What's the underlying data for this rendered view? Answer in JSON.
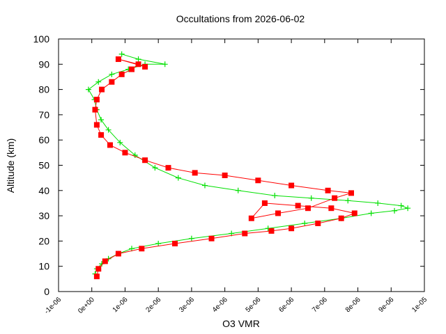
{
  "chart_data": {
    "type": "scatter",
    "title": "Occultations from 2026-06-02",
    "xlabel": "O3 VMR",
    "ylabel": "Altitude (km)",
    "xlim": [
      -1e-06,
      1e-05
    ],
    "ylim": [
      0,
      100
    ],
    "x_ticks": [
      {
        "value": -1e-06,
        "label": "-1e-06"
      },
      {
        "value": 0,
        "label": "0e+00"
      },
      {
        "value": 1e-06,
        "label": "1e-06"
      },
      {
        "value": 2e-06,
        "label": "2e-06"
      },
      {
        "value": 3e-06,
        "label": "3e-06"
      },
      {
        "value": 4e-06,
        "label": "4e-06"
      },
      {
        "value": 5e-06,
        "label": "5e-06"
      },
      {
        "value": 6e-06,
        "label": "6e-06"
      },
      {
        "value": 7e-06,
        "label": "7e-06"
      },
      {
        "value": 8e-06,
        "label": "8e-06"
      },
      {
        "value": 9e-06,
        "label": "9e-06"
      },
      {
        "value": 1e-05,
        "label": "1e-05"
      }
    ],
    "y_ticks": [
      0,
      10,
      20,
      30,
      40,
      50,
      60,
      70,
      80,
      90,
      100
    ],
    "grid": false,
    "legend": "none",
    "series": [
      {
        "marker": "plus",
        "color": "#00e000",
        "x": [
          1e-07,
          1.5e-07,
          3e-07,
          5e-07,
          8e-07,
          1.2e-06,
          2e-06,
          3e-06,
          4.2e-06,
          5.3e-06,
          6.4e-06,
          7.5e-06,
          8.4e-06,
          9.1e-06,
          9.5e-06,
          9.3e-06,
          8.6e-06,
          7.7e-06,
          6.6e-06,
          5.5e-06,
          4.4e-06,
          3.4e-06,
          2.6e-06,
          1.9e-06,
          1.3e-06,
          8.5e-07,
          5e-07,
          2.8e-07,
          1.5e-07,
          8e-08,
          -1e-07,
          2e-07,
          6e-07,
          1.1e-06,
          1.6e-06,
          2.2e-06,
          1.4e-06,
          9e-07
        ],
        "y": [
          7,
          9,
          11,
          13,
          15,
          17,
          19,
          21,
          23,
          25,
          27,
          29,
          31,
          32,
          33,
          34,
          35,
          36,
          37,
          38,
          40,
          42,
          45,
          49,
          54,
          59,
          64,
          68,
          72,
          76,
          80,
          83,
          86,
          88,
          90,
          90,
          92,
          94
        ]
      },
      {
        "marker": "square",
        "color": "#ff0000",
        "x": [
          1.5e-07,
          2e-07,
          4e-07,
          8e-07,
          1.5e-06,
          2.5e-06,
          3.6e-06,
          4.6e-06,
          5.4e-06,
          6e-06,
          6.8e-06,
          7.5e-06,
          7.9e-06,
          7.2e-06,
          6.2e-06,
          5.2e-06,
          4.8e-06,
          5.6e-06,
          6.5e-06,
          7.3e-06,
          7.8e-06,
          7.1e-06,
          6e-06,
          5e-06,
          4e-06,
          3.1e-06,
          2.3e-06,
          1.6e-06,
          1e-06,
          5.5e-07,
          2.8e-07,
          1.5e-07,
          1e-07,
          1.5e-07,
          3e-07,
          6e-07,
          9e-07,
          1.2e-06,
          1.4e-06,
          8e-07,
          1.6e-06
        ],
        "y": [
          6,
          9,
          12,
          15,
          17,
          19,
          21,
          23,
          24,
          25,
          27,
          29,
          31,
          33,
          34,
          35,
          29,
          31,
          33,
          37,
          39,
          40,
          42,
          44,
          46,
          47,
          49,
          52,
          55,
          58,
          62,
          66,
          72,
          76,
          80,
          83,
          86,
          88,
          90,
          92,
          89
        ]
      }
    ]
  }
}
